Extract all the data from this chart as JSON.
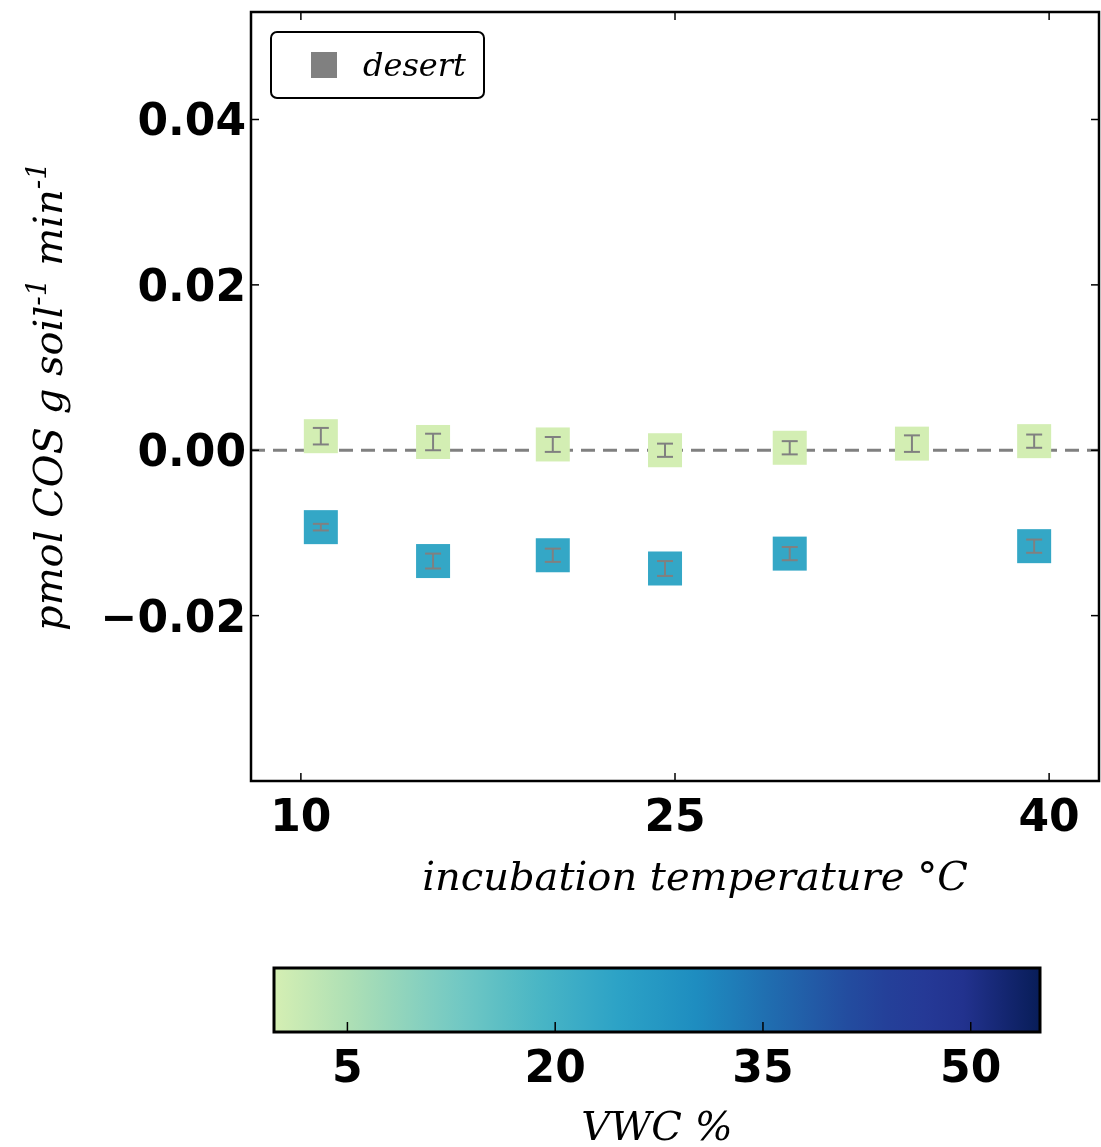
{
  "chart_data": {
    "type": "scatter",
    "xlabel": "incubation temperature °C",
    "ylabel": "pmol COS g  soil$^{-1}$  min$^{-1}$",
    "clabel": "VWC %",
    "xlim": [
      8,
      42
    ],
    "xticks": [
      10,
      25,
      40
    ],
    "ylim": [
      -0.04,
      0.053
    ],
    "yticks": [
      {
        "value": 0.04,
        "label": "0.04"
      },
      {
        "value": 0.02,
        "label": "0.02"
      },
      {
        "value": 0,
        "label": "0.00"
      },
      {
        "value": -0.02,
        "label": "−0.02"
      }
    ],
    "clim": [
      -0.3,
      55
    ],
    "cticks": [
      5,
      20,
      35,
      50
    ],
    "marker": "square",
    "legend": "top left",
    "grid": false,
    "ref_lines": [
      {
        "axis": "y",
        "value": 0,
        "color": "#808080",
        "line_style": "dashed"
      }
    ],
    "series": [
      {
        "name": "desert",
        "x": [
          10.8,
          15.3,
          20.1,
          24.6,
          29.6,
          34.5,
          39.4,
          10.8,
          15.3,
          20.1,
          24.6,
          29.6,
          39.4
        ],
        "values": [
          0.0017,
          0.001,
          0.0007,
          0,
          0.0003,
          0.0008,
          0.0011,
          -0.0093,
          -0.0134,
          -0.0127,
          -0.0143,
          -0.0125,
          -0.0116
        ],
        "errors": [
          0.001,
          0.001,
          0.0009,
          0.0008,
          0.0008,
          0.001,
          0.0008,
          0.0004,
          0.0009,
          0.0008,
          0.0009,
          0.0008,
          0.0008
        ],
        "cvalues": [
          0,
          0,
          0,
          0,
          0,
          0,
          0,
          23,
          23,
          23,
          23,
          23,
          23
        ]
      }
    ]
  }
}
